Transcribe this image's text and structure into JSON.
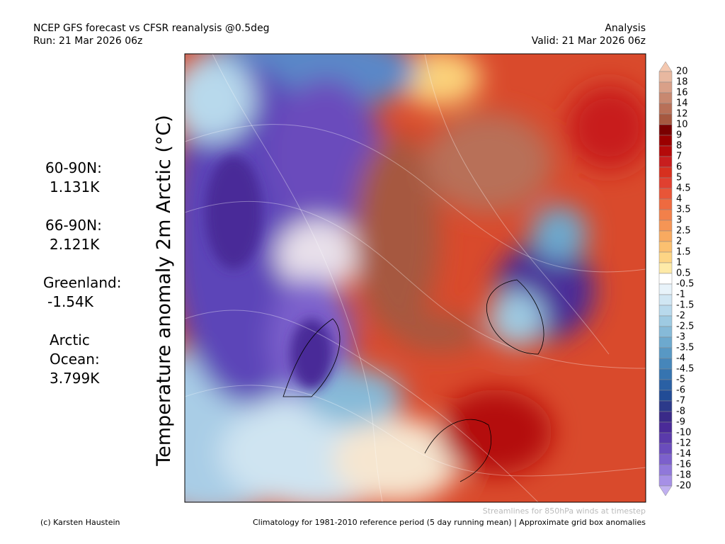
{
  "header": {
    "title": "NCEP GFS forecast vs CFSR reanalysis @0.5deg",
    "run": "Run: 21 Mar 2026 06z",
    "mode": "Analysis",
    "valid": "Valid: 21 Mar 2026 06z"
  },
  "axis_title": "Temperature anomaly 2m Arctic (°C)",
  "stats": [
    {
      "label": [
        "60-90N:"
      ],
      "value": "1.131K"
    },
    {
      "label": [
        "66-90N:"
      ],
      "value": "2.121K"
    },
    {
      "label": [
        "Greenland:"
      ],
      "value": "-1.54K"
    },
    {
      "label": [
        "Arctic",
        "Ocean:"
      ],
      "value": "3.799K"
    }
  ],
  "colorbar": {
    "labels": [
      "20",
      "18",
      "16",
      "14",
      "12",
      "10",
      "9",
      "8",
      "7",
      "6",
      "5",
      "4.5",
      "4",
      "3.5",
      "3",
      "2.5",
      "2",
      "1.5",
      "1",
      "0.5",
      "-0.5",
      "-1",
      "-1.5",
      "-2",
      "-2.5",
      "-3",
      "-3.5",
      "-4",
      "-4.5",
      "-5",
      "-6",
      "-7",
      "-8",
      "-9",
      "-10",
      "-12",
      "-14",
      "-16",
      "-18",
      "-20"
    ],
    "colors": [
      "#f4c8b0",
      "#e8b8a0",
      "#d9a088",
      "#c88870",
      "#b87058",
      "#a65840",
      "#7a0000",
      "#9b0000",
      "#b40a0a",
      "#c81e1e",
      "#d7301f",
      "#e04030",
      "#e85538",
      "#ee6a40",
      "#f2804a",
      "#f59555",
      "#f8aa60",
      "#fbc070",
      "#fdd585",
      "#feeaa8",
      "#ffffff",
      "#e8f3fa",
      "#d0e6f3",
      "#b8d9ec",
      "#9ecae2",
      "#86bad8",
      "#6da9ce",
      "#5898c4",
      "#4686ba",
      "#3674b0",
      "#2a60a4",
      "#224c96",
      "#2c3a8a",
      "#3a2a88",
      "#4a2a98",
      "#5a3aaa",
      "#6a4cbc",
      "#7c60cc",
      "#9078da",
      "#a690e6",
      "#c0b0f0"
    ]
  },
  "footer": {
    "streamlines": "Streamlines for 850hPa winds at timestep",
    "credit": "(c) Karsten Haustein",
    "climatology": "Climatology for 1981-2010 reference period (5 day running mean) | Approximate grid box anomalies"
  }
}
